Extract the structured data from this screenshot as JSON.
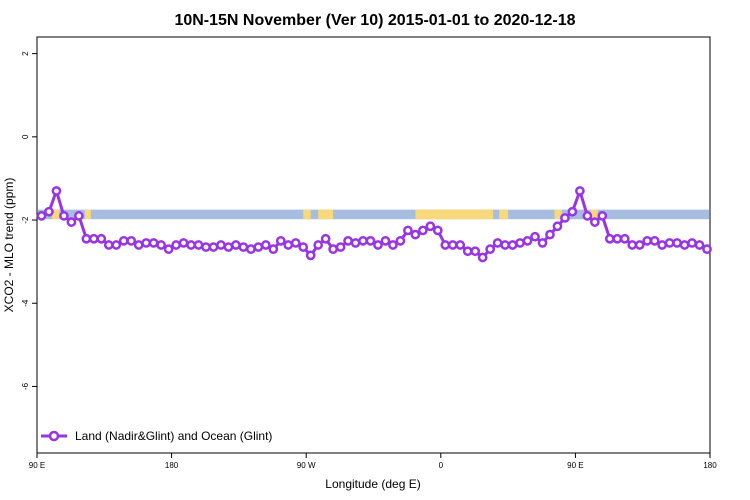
{
  "chart_data": {
    "type": "line",
    "title": "10N-15N November (Ver 10)   2015-01-01 to 2020-12-18",
    "xlabel": "Longitude (deg E)",
    "ylabel": "XCO2 - MLO trend (ppm)",
    "x_tick_labels": [
      "90 E",
      "180",
      "90 W",
      "0",
      "90 E",
      "180"
    ],
    "x_ticks_deg": [
      90,
      180,
      270,
      360,
      450,
      540
    ],
    "xlim": [
      90,
      540
    ],
    "y_ticks": [
      2,
      0,
      -2,
      -4,
      -6
    ],
    "ylim": [
      -7.6,
      2.4
    ],
    "grid": false,
    "legend_position": "bottom-left",
    "colors": {
      "series": "#9933e6",
      "ocean": "#a7bde0",
      "land": "#f7d87a"
    },
    "map_strip": {
      "y_top": -1.75,
      "y_bottom": -1.98,
      "land_segments_deg": [
        [
          100,
          105
        ],
        [
          122,
          126
        ],
        [
          268,
          273
        ],
        [
          278,
          288
        ],
        [
          343,
          395
        ],
        [
          399,
          405
        ],
        [
          436,
          441
        ],
        [
          460,
          465
        ]
      ]
    },
    "series": [
      {
        "name": "Land (Nadir&Glint) and Ocean (Glint)",
        "x": [
          93,
          98,
          103,
          108,
          113,
          118,
          123,
          128,
          133,
          138,
          143,
          148,
          153,
          158,
          163,
          168,
          173,
          178,
          183,
          188,
          193,
          198,
          203,
          208,
          213,
          218,
          223,
          228,
          233,
          238,
          243,
          248,
          253,
          258,
          263,
          268,
          273,
          278,
          283,
          288,
          293,
          298,
          303,
          308,
          313,
          318,
          323,
          328,
          333,
          338,
          343,
          348,
          353,
          358,
          363,
          368,
          373,
          378,
          383,
          388,
          393,
          398,
          403,
          408,
          413,
          418,
          423,
          428,
          433,
          438,
          443,
          448,
          453,
          458,
          463,
          468,
          473,
          478,
          483,
          488,
          493,
          498,
          503,
          508,
          513,
          518,
          523,
          528,
          533,
          538
        ],
        "values": [
          -1.9,
          -1.8,
          -1.3,
          -1.9,
          -2.05,
          -1.9,
          -2.45,
          -2.45,
          -2.45,
          -2.6,
          -2.6,
          -2.5,
          -2.5,
          -2.6,
          -2.55,
          -2.55,
          -2.6,
          -2.7,
          -2.6,
          -2.55,
          -2.6,
          -2.6,
          -2.65,
          -2.65,
          -2.6,
          -2.65,
          -2.6,
          -2.65,
          -2.7,
          -2.65,
          -2.6,
          -2.7,
          -2.5,
          -2.6,
          -2.55,
          -2.65,
          -2.85,
          -2.6,
          -2.45,
          -2.7,
          -2.65,
          -2.5,
          -2.55,
          -2.5,
          -2.5,
          -2.6,
          -2.5,
          -2.6,
          -2.5,
          -2.25,
          -2.35,
          -2.25,
          -2.15,
          -2.25,
          -2.6,
          -2.6,
          -2.6,
          -2.75,
          -2.75,
          -2.9,
          -2.7,
          -2.55,
          -2.6,
          -2.6,
          -2.55,
          -2.5,
          -2.4,
          -2.55,
          -2.35,
          -2.15,
          -1.95,
          -1.8,
          -1.3,
          -1.9,
          -2.05,
          -1.9,
          -2.45,
          -2.45,
          -2.45,
          -2.6,
          -2.6,
          -2.5,
          -2.5,
          -2.6,
          -2.55,
          -2.55,
          -2.6,
          -2.55,
          -2.6,
          -2.7
        ]
      }
    ]
  }
}
